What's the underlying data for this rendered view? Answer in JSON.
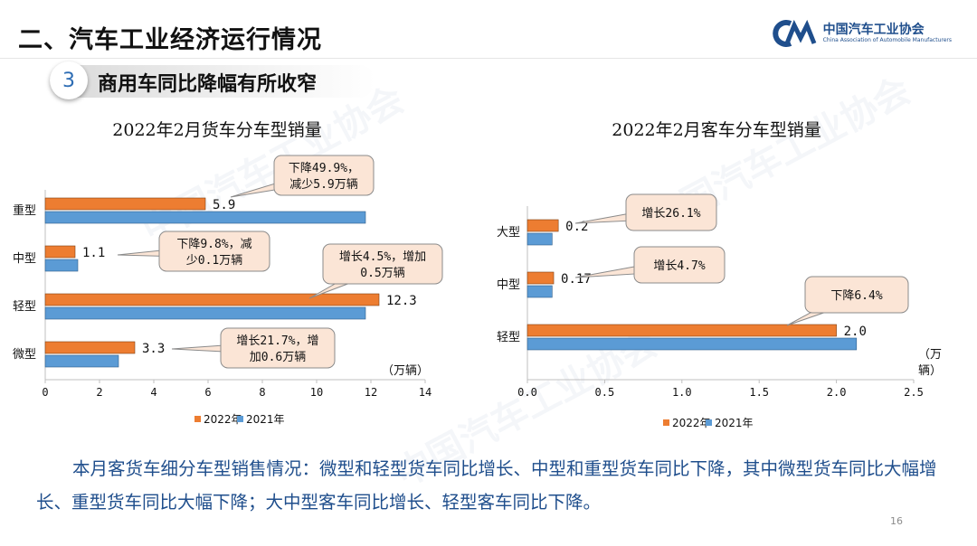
{
  "header": {
    "title": "二、汽车工业经济运行情况",
    "logo_cn": "中国汽车工业协会",
    "logo_en": "China Association of Automobile Manufacturers",
    "logo_mark": "CM",
    "section_number": "3",
    "section_title": "商用车同比降幅有所收窄"
  },
  "colors": {
    "y2022": "#ed7d31",
    "y2021": "#5b9bd5",
    "callout_fill": "#fbe5d6",
    "callout_stroke": "#8b8b8b"
  },
  "chart_data": [
    {
      "type": "bar",
      "orientation": "horizontal",
      "title": "2022年2月货车分车型销量",
      "categories": [
        "重型",
        "中型",
        "轻型",
        "微型"
      ],
      "series": [
        {
          "name": "2022年",
          "values": [
            5.9,
            1.1,
            12.3,
            3.3
          ]
        },
        {
          "name": "2021年",
          "values": [
            11.8,
            1.2,
            11.8,
            2.7
          ]
        }
      ],
      "data_labels": [
        "5.9",
        "1.1",
        "12.3",
        "3.3"
      ],
      "xlim": [
        0,
        14
      ],
      "xticks": [
        "0",
        "2",
        "4",
        "6",
        "8",
        "10",
        "12",
        "14"
      ],
      "unit": "（万辆）",
      "legend": "bottom",
      "annotations": [
        {
          "lines": [
            "下降49.9%，",
            "减少5.9万辆"
          ]
        },
        {
          "lines": [
            "下降9.8%，减",
            "少0.1万辆"
          ]
        },
        {
          "lines": [
            "增长4.5%，增加",
            "0.5万辆"
          ]
        },
        {
          "lines": [
            "增长21.7%，增",
            "加0.6万辆"
          ]
        }
      ]
    },
    {
      "type": "bar",
      "orientation": "horizontal",
      "title": "2022年2月客车分车型销量",
      "categories": [
        "大型",
        "中型",
        "轻型"
      ],
      "series": [
        {
          "name": "2022年",
          "values": [
            0.2,
            0.17,
            2.0
          ]
        },
        {
          "name": "2021年",
          "values": [
            0.16,
            0.16,
            2.13
          ]
        }
      ],
      "data_labels": [
        "0.2",
        "0.17",
        "2.0"
      ],
      "xlim": [
        0,
        2.5
      ],
      "xticks": [
        "0.0",
        "0.5",
        "1.0",
        "1.5",
        "2.0",
        "2.5"
      ],
      "unit_lines": [
        "（万",
        "辆）"
      ],
      "legend": "bottom",
      "annotations": [
        {
          "lines": [
            "增长26.1%"
          ]
        },
        {
          "lines": [
            "增长4.7%"
          ]
        },
        {
          "lines": [
            "下降6.4%"
          ]
        }
      ]
    }
  ],
  "body_text": "本月客货车细分车型销售情况：微型和轻型货车同比增长、中型和重型货车同比下降，其中微型货车同比大幅增长、重型货车同比大幅下降；大中型客车同比增长、轻型客车同比下降。",
  "page_number": "16"
}
